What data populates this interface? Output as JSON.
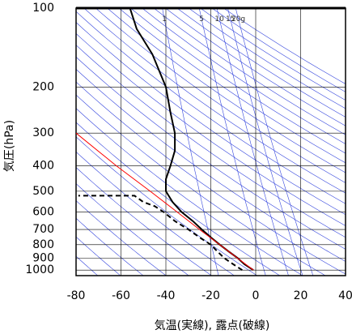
{
  "chart_data": {
    "type": "emagram",
    "xlabel": "気温(実線), 露点(破線)",
    "ylabel": "気圧(hPa)",
    "xlim": [
      -80,
      40
    ],
    "xticks": [
      -80,
      -60,
      -40,
      -20,
      0,
      20,
      40
    ],
    "ylim": [
      1050,
      100
    ],
    "yticks": [
      100,
      200,
      300,
      400,
      500,
      600,
      700,
      800,
      900,
      1000
    ],
    "log_y": true,
    "grid": true,
    "mixing_ratio_labels": [
      1,
      5,
      10,
      15,
      {
        "value": 20,
        "label": "20g"
      }
    ],
    "series": [
      {
        "color": "#000000",
        "dash": false,
        "pressure": [
          1000,
          950,
          900,
          850,
          800,
          750,
          700,
          650,
          600,
          550,
          500,
          450,
          400,
          350,
          300,
          250,
          200,
          150,
          120,
          100
        ],
        "values": [
          -1,
          -5,
          -8,
          -12,
          -16,
          -20,
          -24,
          -28,
          -33,
          -37,
          -40,
          -40,
          -38,
          -36,
          -36,
          -38,
          -40,
          -46,
          -53,
          -56
        ]
      },
      {
        "color": "#000000",
        "dash": true,
        "pressure": [
          1000,
          950,
          900,
          850,
          800,
          750,
          700,
          650,
          600,
          570,
          550,
          520,
          520
        ],
        "values": [
          -6,
          -10,
          -14,
          -17,
          -20,
          -25,
          -30,
          -36,
          -41,
          -45,
          -50,
          -54,
          -79
        ]
      },
      {
        "color": "#ff0000",
        "dash": false,
        "pressure": [
          1000,
          850,
          700,
          600,
          500,
          400,
          300
        ],
        "values": [
          -1,
          -12,
          -25,
          -35,
          -47,
          -62,
          -80
        ]
      }
    ]
  }
}
